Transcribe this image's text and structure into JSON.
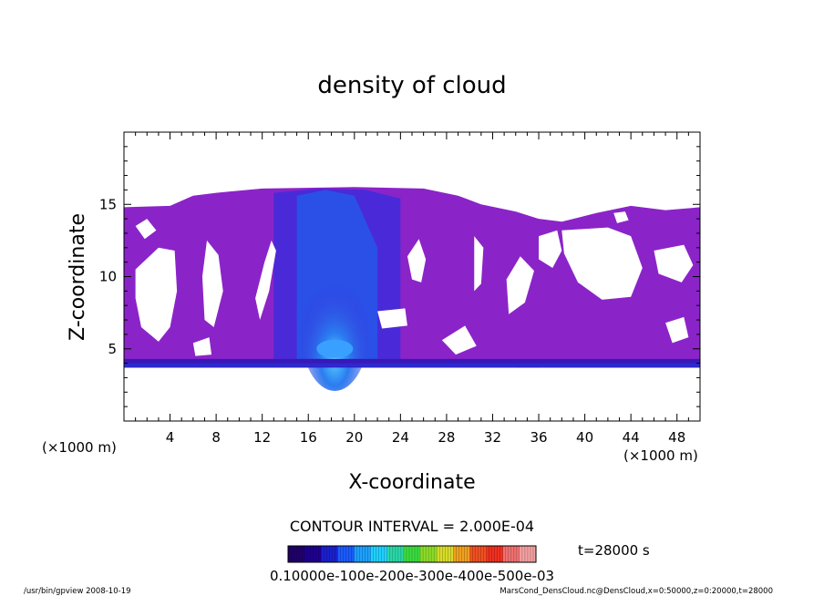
{
  "chart_data": {
    "type": "heatmap",
    "title": "density of cloud",
    "xlabel": "X-coordinate",
    "ylabel": "Z-coordinate",
    "x_unit": "(×1000 m)",
    "y_unit": "(×1000 m)",
    "xlim": [
      0,
      50
    ],
    "ylim": [
      0,
      20
    ],
    "x_ticks": [
      4,
      8,
      12,
      16,
      20,
      24,
      28,
      32,
      36,
      40,
      44,
      48
    ],
    "y_ticks": [
      5,
      10,
      15
    ],
    "contour_interval_label": "CONTOUR INTERVAL = 2.000E-04",
    "time_label": "t=28000 s",
    "colorbar": {
      "min": 0.0,
      "max": 0.0006,
      "tick_label_text": "0.10000e-100e-200e-300e-400e-500e-03",
      "colors": [
        "#20006a",
        "#1e0090",
        "#1a20d0",
        "#1a5aff",
        "#1ca0ff",
        "#20d0ff",
        "#2ad8a8",
        "#3cdc40",
        "#8cdc28",
        "#d8dc28",
        "#f0a020",
        "#f05020",
        "#f03020",
        "#f07070",
        "#f4a0a0"
      ]
    },
    "region_colors": {
      "low": "#8a24c8",
      "mid": "#4a2ad8",
      "core": "#2a50e8",
      "high": "#3aa0ff"
    },
    "footer_left": "/usr/bin/gpview   2008-10-19",
    "footer_right": "MarsCond_DensCloud.nc@DensCloud,x=0:50000,z=0:20000,t=28000"
  }
}
